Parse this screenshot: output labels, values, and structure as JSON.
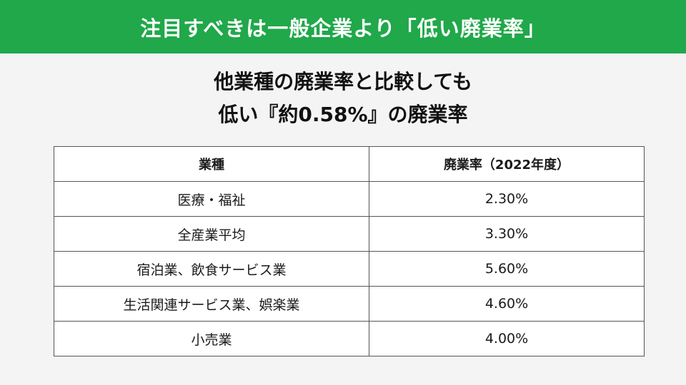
{
  "banner": {
    "title": "注目すべきは一般企業より「低い廃業率」"
  },
  "headline": {
    "line1": "他業種の廃業率と比較しても",
    "line2": "低い『約0.58%』の廃業率"
  },
  "table": {
    "headers": [
      "業種",
      "廃業率（2022年度）"
    ],
    "rows": [
      {
        "industry": "医療・福祉",
        "rate": "2.30%"
      },
      {
        "industry": "全産業平均",
        "rate": "3.30%"
      },
      {
        "industry": "宿泊業、飲食サービス業",
        "rate": "5.60%"
      },
      {
        "industry": "生活関連サービス業、娯楽業",
        "rate": "4.60%"
      },
      {
        "industry": "小売業",
        "rate": "4.00%"
      }
    ]
  },
  "colors": {
    "banner_bg": "#20a84a",
    "page_bg": "#f4f4f4",
    "table_border": "#555555"
  }
}
